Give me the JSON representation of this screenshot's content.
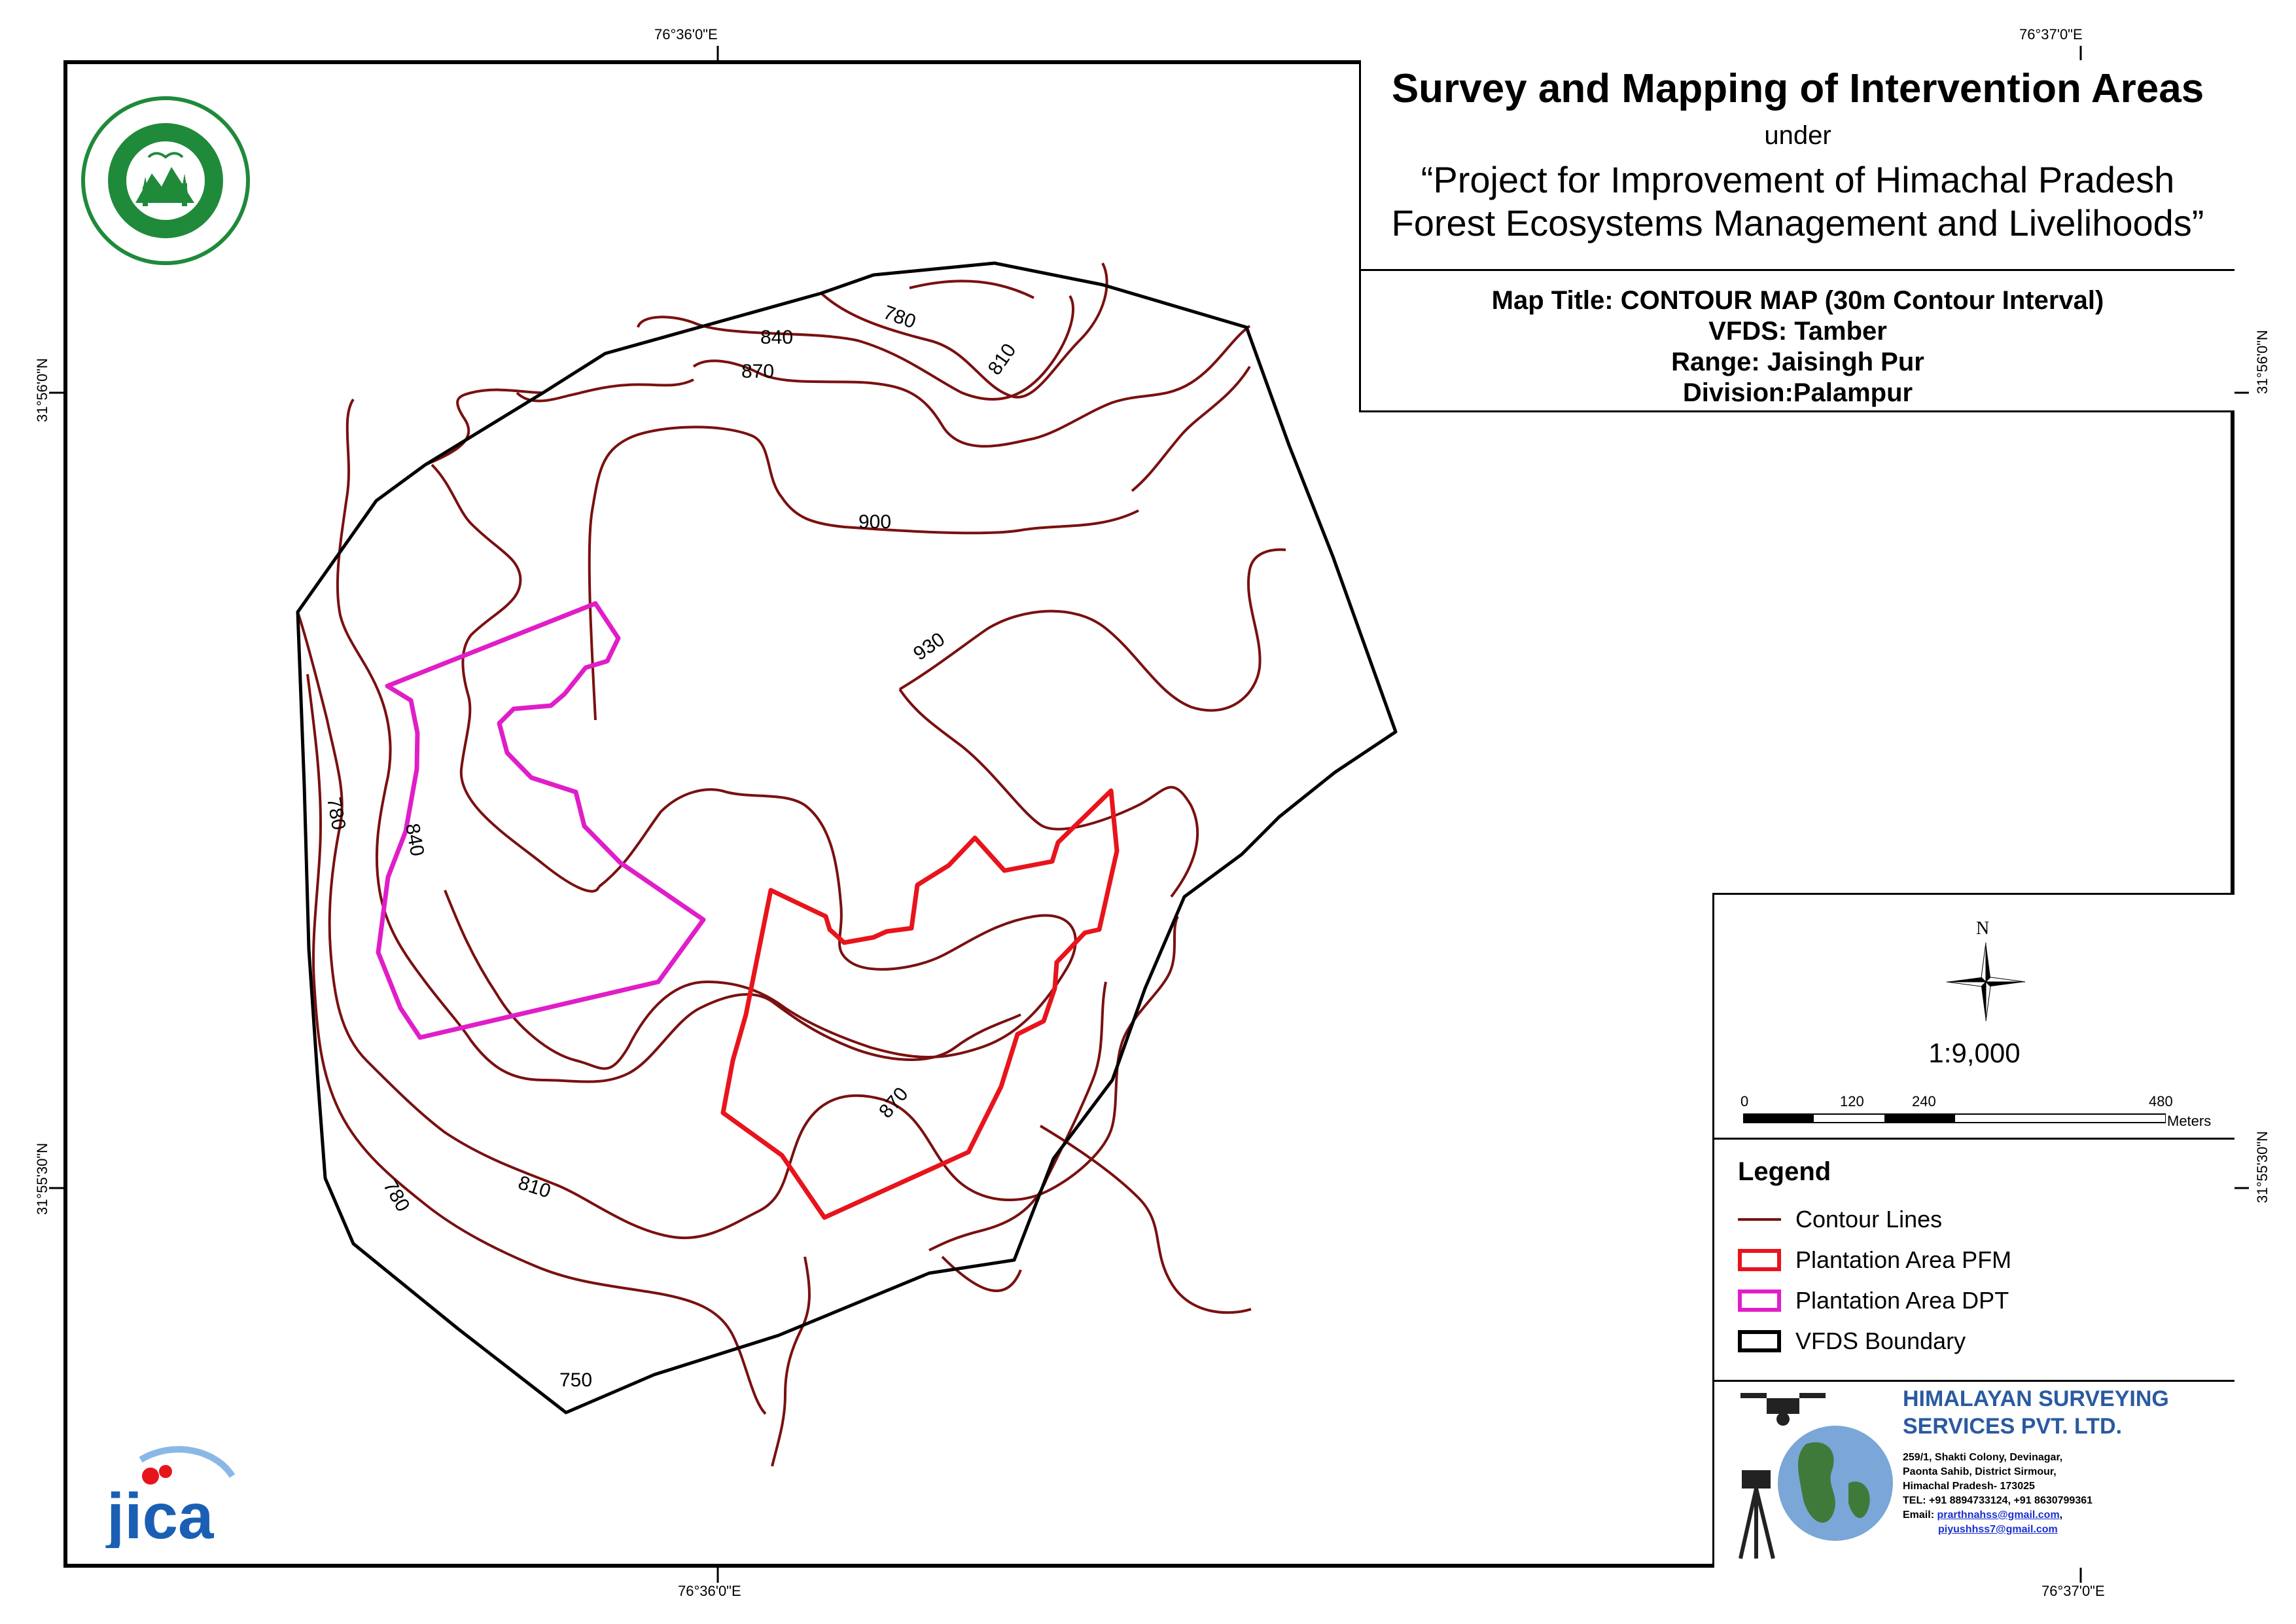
{
  "title": {
    "main": "Survey and Mapping of Intervention Areas",
    "under": "under",
    "project_line1": "“Project for Improvement of Himachal Pradesh",
    "project_line2": "Forest Ecosystems Management and Livelihoods”"
  },
  "info": {
    "map_title": "Map Title: CONTOUR MAP (30m Contour Interval)",
    "vfds": "VFDS: Tamber",
    "range": "Range: Jaisingh Pur",
    "division": "Division:Palampur"
  },
  "coordinates": {
    "top_left_lon": "76°36'0\"E",
    "top_right_lon": "76°37'0\"E",
    "bottom_left_lon": "76°36'0\"E",
    "bottom_right_lon": "76°37'0\"E",
    "left_upper_lat": "31°56'0\"N",
    "left_lower_lat": "31°55'30\"N",
    "right_upper_lat": "31°56'0\"N",
    "right_lower_lat": "31°55'30\"N"
  },
  "contour_labels": [
    "780",
    "840",
    "810",
    "870",
    "900",
    "930",
    "780",
    "840",
    "870",
    "810",
    "780",
    "750"
  ],
  "scale": {
    "north": "N",
    "ratio": "1:9,000",
    "ticks": [
      "0",
      "120",
      "240",
      "480"
    ],
    "unit": "Meters"
  },
  "legend": {
    "title": "Legend",
    "items": [
      {
        "label": "Contour Lines",
        "color": "#7a1010"
      },
      {
        "label": "Plantation Area PFM",
        "color": "#e8141c"
      },
      {
        "label": "Plantation Area DPT",
        "color": "#e01ec8"
      },
      {
        "label": "VFDS Boundary",
        "color": "#000000"
      }
    ]
  },
  "company": {
    "name_line1": "HIMALAYAN SURVEYING",
    "name_line2": "SERVICES PVT. LTD.",
    "addr1": "259/1, Shakti Colony, Devinagar,",
    "addr2": "Paonta Sahib, District Sirmour,",
    "addr3": "Himachal Pradesh- 173025",
    "tel": "TEL: +91 8894733124, +91 8630799361",
    "email_prefix": "Email: ",
    "email1": "prarthnahss@gmail.com",
    "email2": "piyushhss7@gmail.com"
  },
  "logos": {
    "forest_dept": "forest-department-seal",
    "jica": "jica"
  }
}
